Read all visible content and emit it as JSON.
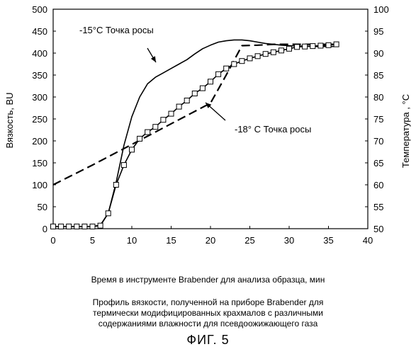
{
  "chart_data": {
    "type": "line",
    "xlabel": "Время в инструменте Brabender для анализа образца, мин",
    "ylabel": "Вязкость, BU",
    "y2label": "Температура , °C",
    "xlim": [
      0,
      40
    ],
    "ylim": [
      0,
      500
    ],
    "y2lim": [
      50,
      100
    ],
    "x_ticks": [
      "0",
      "5",
      "10",
      "15",
      "20",
      "25",
      "30",
      "35",
      "40"
    ],
    "y_ticks": [
      "0",
      "50",
      "100",
      "150",
      "200",
      "250",
      "300",
      "350",
      "400",
      "450",
      "500"
    ],
    "y2_ticks": [
      "50",
      "55",
      "60",
      "65",
      "70",
      "75",
      "80",
      "85",
      "90",
      "95",
      "100"
    ],
    "grid": false,
    "legend": "none",
    "series": [
      {
        "axis": "left",
        "style": "solid",
        "marker": "none",
        "x": [
          5,
          6,
          7,
          8,
          9,
          10,
          11,
          12,
          13,
          14,
          15,
          16,
          17,
          18,
          19,
          20,
          21,
          22,
          23,
          24,
          25,
          26,
          27,
          28,
          29,
          30,
          31,
          32,
          33,
          34,
          35,
          36
        ],
        "y": [
          5,
          8,
          35,
          105,
          190,
          255,
          300,
          330,
          345,
          355,
          365,
          375,
          385,
          398,
          410,
          418,
          425,
          428,
          430,
          430,
          428,
          425,
          422,
          420,
          418,
          417,
          416,
          416,
          415,
          415,
          415,
          415
        ]
      },
      {
        "axis": "right",
        "style": "dashed",
        "marker": "none",
        "x": [
          0,
          5,
          10,
          15,
          20,
          22,
          24,
          26,
          28,
          30,
          32,
          34,
          36
        ],
        "y": [
          60,
          64.5,
          69.2,
          73.9,
          78.6,
          85,
          91.7,
          91.8,
          92,
          92,
          92,
          92,
          92
        ]
      },
      {
        "axis": "left",
        "style": "solid",
        "marker": "square",
        "x": [
          0,
          1,
          2,
          3,
          4,
          5,
          6,
          7,
          8,
          9,
          10,
          11,
          12,
          13,
          14,
          15,
          16,
          17,
          18,
          19,
          20,
          21,
          22,
          23,
          24,
          25,
          26,
          27,
          28,
          29,
          30,
          31,
          32,
          33,
          34,
          35,
          36
        ],
        "y": [
          5,
          5,
          5,
          5,
          5,
          5,
          7,
          35,
          100,
          145,
          180,
          205,
          220,
          232,
          248,
          262,
          278,
          292,
          308,
          320,
          335,
          352,
          365,
          375,
          382,
          388,
          393,
          398,
          402,
          406,
          410,
          414,
          415,
          416,
          417,
          418,
          420
        ]
      }
    ],
    "annotations": [
      {
        "text": "-15°C Точка росы",
        "points_to_series": 0
      },
      {
        "text": "-18° C Точка росы",
        "points_to_series": 2
      }
    ]
  },
  "caption": {
    "description_lines": [
      "Профиль вязкости, полученной на приборе Brabender для",
      "термически модифицированных крахмалов с различными",
      "содержаниями влажности для псевдоожижающего газа"
    ],
    "figure_label": "ФИГ. 5"
  }
}
